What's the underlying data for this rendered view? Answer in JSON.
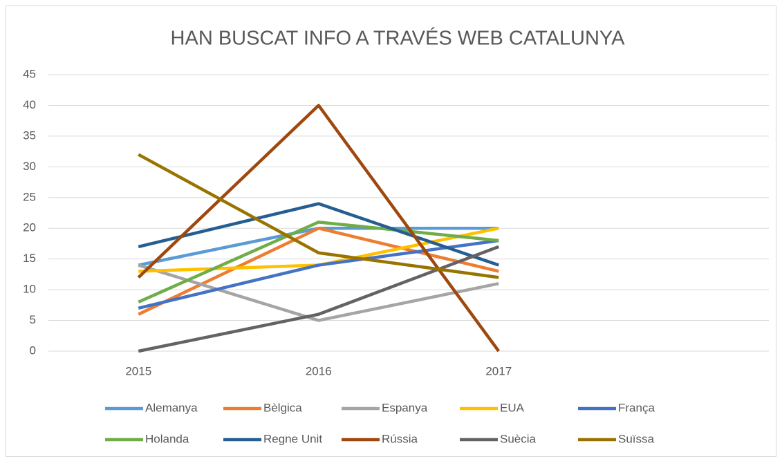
{
  "chart_data": {
    "type": "line",
    "title": "HAN BUSCAT INFO A TRAVÉS WEB CATALUNYA",
    "categories": [
      "2015",
      "2016",
      "2017",
      null
    ],
    "series": [
      {
        "name": "Alemanya",
        "color": "#5b9bd5",
        "values": [
          14,
          20,
          20,
          null
        ]
      },
      {
        "name": "Bèlgica",
        "color": "#ed7d31",
        "values": [
          6,
          20,
          13,
          null
        ]
      },
      {
        "name": "Espanya",
        "color": "#a5a5a5",
        "values": [
          14,
          5,
          11,
          null
        ]
      },
      {
        "name": "EUA",
        "color": "#ffc000",
        "values": [
          13,
          14,
          20,
          null
        ]
      },
      {
        "name": "França",
        "color": "#4472c4",
        "values": [
          7,
          14,
          18,
          null
        ]
      },
      {
        "name": "Holanda",
        "color": "#70ad47",
        "values": [
          8,
          21,
          18,
          null
        ]
      },
      {
        "name": "Regne Unit",
        "color": "#255e91",
        "values": [
          17,
          24,
          14,
          null
        ]
      },
      {
        "name": "Rússia",
        "color": "#9e480e",
        "values": [
          12,
          40,
          0,
          null
        ]
      },
      {
        "name": "Suècia",
        "color": "#636363",
        "values": [
          0,
          6,
          17,
          null
        ]
      },
      {
        "name": "Suïssa",
        "color": "#997300",
        "values": [
          32,
          16,
          12,
          null
        ]
      }
    ],
    "ylim": [
      0,
      45
    ],
    "yticks": [
      0,
      5,
      10,
      15,
      20,
      25,
      30,
      35,
      40,
      45
    ],
    "grid": true,
    "legend": "bottom"
  }
}
